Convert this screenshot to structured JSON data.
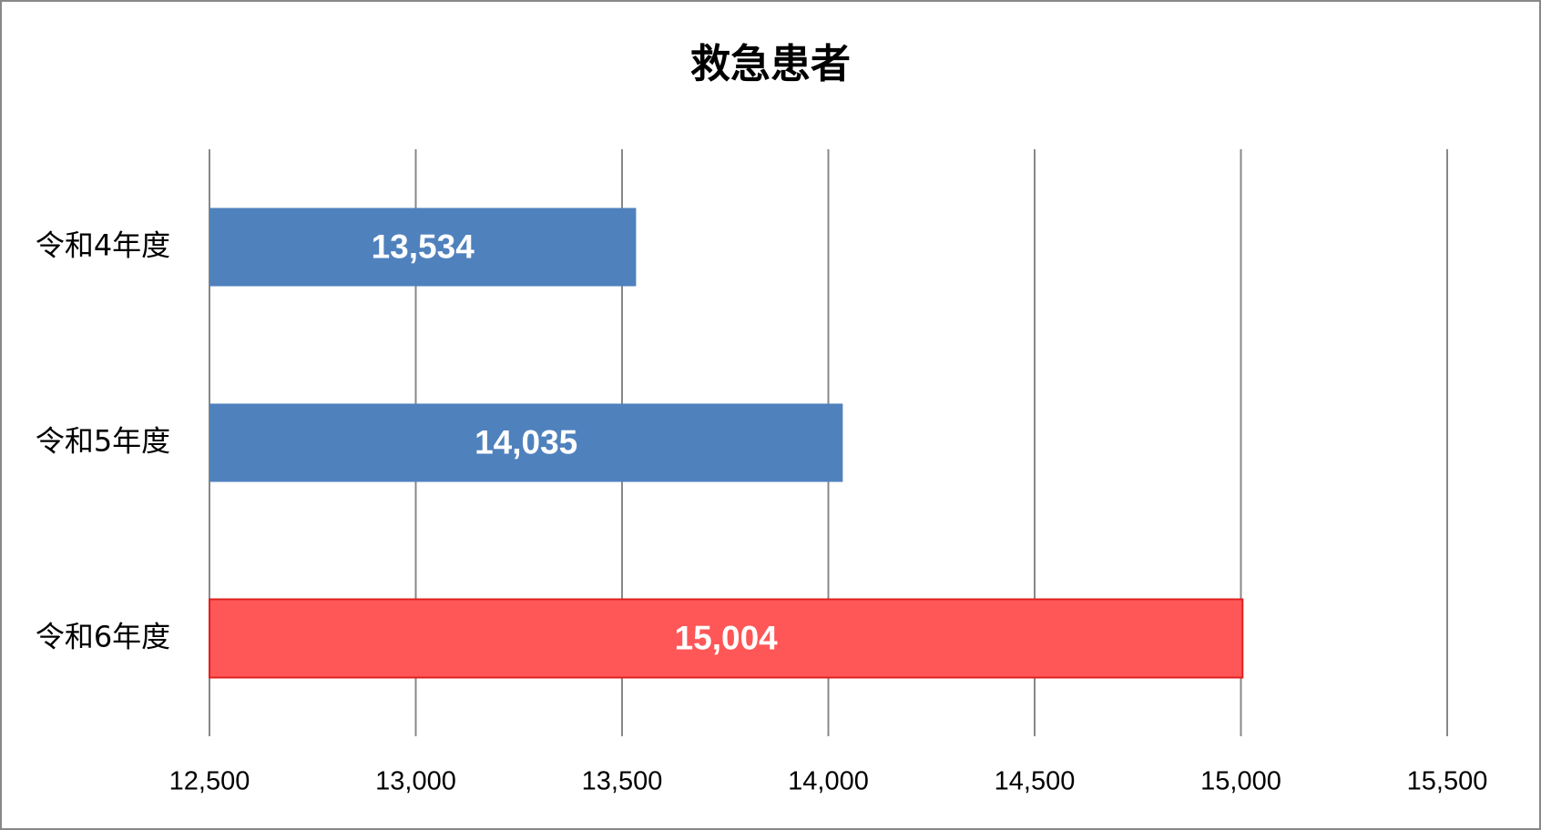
{
  "chart_data": {
    "type": "hbar",
    "title": "救急患者",
    "categories": [
      "令和4年度",
      "令和5年度",
      "令和6年度"
    ],
    "values": [
      13534,
      14035,
      15004
    ],
    "value_labels": [
      "13,534",
      "14,035",
      "15,004"
    ],
    "colors": [
      "#4f81bd",
      "#4f81bd",
      "#ff5757"
    ],
    "xlim": [
      12500,
      15500
    ],
    "xticks": [
      {
        "value": 12500,
        "label": "12,500"
      },
      {
        "value": 13000,
        "label": "13,000"
      },
      {
        "value": 13500,
        "label": "13,500"
      },
      {
        "value": 14000,
        "label": "14,000"
      },
      {
        "value": 14500,
        "label": "14,500"
      },
      {
        "value": 15000,
        "label": "15,000"
      },
      {
        "value": 15500,
        "label": "15,500"
      }
    ],
    "grid": true
  }
}
